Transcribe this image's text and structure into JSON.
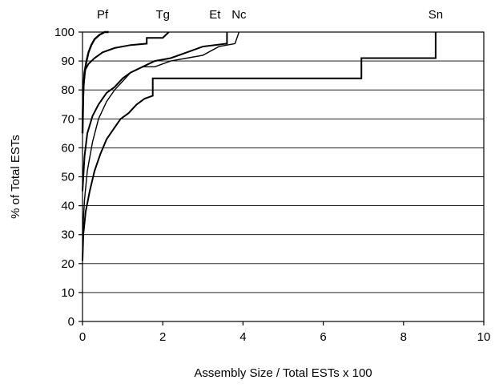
{
  "chart_data": {
    "type": "line",
    "title": "",
    "xlabel": "Assembly Size / Total ESTs x 100",
    "ylabel": "% of Total ESTs",
    "xlim": [
      0,
      10
    ],
    "ylim": [
      0,
      100
    ],
    "x_ticks": [
      0,
      2,
      4,
      6,
      8,
      10
    ],
    "y_ticks": [
      0,
      10,
      20,
      30,
      40,
      50,
      60,
      70,
      80,
      90,
      100
    ],
    "grid": "horizontal",
    "legend": "direct labels above plot",
    "series": [
      {
        "name": "Pf",
        "points": [
          [
            0,
            65
          ],
          [
            0.02,
            80
          ],
          [
            0.05,
            86
          ],
          [
            0.1,
            90
          ],
          [
            0.15,
            93
          ],
          [
            0.22,
            95.5
          ],
          [
            0.3,
            97.5
          ],
          [
            0.42,
            99
          ],
          [
            0.55,
            100
          ],
          [
            0.65,
            100
          ]
        ]
      },
      {
        "name": "Tg",
        "points": [
          [
            0,
            70
          ],
          [
            0.03,
            82
          ],
          [
            0.07,
            87
          ],
          [
            0.15,
            89
          ],
          [
            0.3,
            91
          ],
          [
            0.5,
            93
          ],
          [
            0.8,
            94.5
          ],
          [
            1.2,
            95.5
          ],
          [
            1.6,
            96
          ],
          [
            1.6,
            98
          ],
          [
            2.0,
            98
          ],
          [
            2.15,
            100
          ]
        ]
      },
      {
        "name": "Et",
        "points": [
          [
            0,
            45
          ],
          [
            0.05,
            57
          ],
          [
            0.12,
            65
          ],
          [
            0.25,
            71
          ],
          [
            0.4,
            75
          ],
          [
            0.6,
            79
          ],
          [
            0.8,
            81
          ],
          [
            1.0,
            84
          ],
          [
            1.2,
            86
          ],
          [
            1.5,
            88
          ],
          [
            1.8,
            90
          ],
          [
            2.2,
            91
          ],
          [
            2.6,
            93
          ],
          [
            3.0,
            95
          ],
          [
            3.6,
            96
          ],
          [
            3.6,
            100
          ]
        ]
      },
      {
        "name": "Nc",
        "points": [
          [
            0,
            30
          ],
          [
            0.05,
            42
          ],
          [
            0.12,
            52
          ],
          [
            0.25,
            62
          ],
          [
            0.4,
            70
          ],
          [
            0.6,
            76
          ],
          [
            0.8,
            80
          ],
          [
            1.0,
            83
          ],
          [
            1.2,
            86
          ],
          [
            1.5,
            88
          ],
          [
            1.8,
            88
          ],
          [
            2.2,
            90
          ],
          [
            2.6,
            91
          ],
          [
            3.0,
            92
          ],
          [
            3.4,
            95
          ],
          [
            3.8,
            96
          ],
          [
            3.9,
            100
          ]
        ]
      },
      {
        "name": "Sn",
        "points": [
          [
            0,
            21
          ],
          [
            0.02,
            30
          ],
          [
            0.08,
            38
          ],
          [
            0.18,
            45
          ],
          [
            0.3,
            52
          ],
          [
            0.45,
            58
          ],
          [
            0.6,
            63
          ],
          [
            0.8,
            67
          ],
          [
            0.95,
            70
          ],
          [
            1.15,
            72
          ],
          [
            1.35,
            75
          ],
          [
            1.55,
            77
          ],
          [
            1.75,
            78
          ],
          [
            1.75,
            84
          ],
          [
            6.95,
            84
          ],
          [
            6.95,
            91
          ],
          [
            8.8,
            91
          ],
          [
            8.8,
            100
          ]
        ]
      }
    ],
    "series_label_x": {
      "Pf": 0.5,
      "Tg": 2.0,
      "Et": 3.3,
      "Nc": 3.9,
      "Sn": 8.8
    },
    "line_widths": {
      "Pf": 2.4,
      "Tg": 2.0,
      "Et": 2.0,
      "Nc": 1.4,
      "Sn": 2.0
    },
    "colors": {
      "line": "#000000",
      "grid": "#000000",
      "background": "#ffffff"
    }
  }
}
